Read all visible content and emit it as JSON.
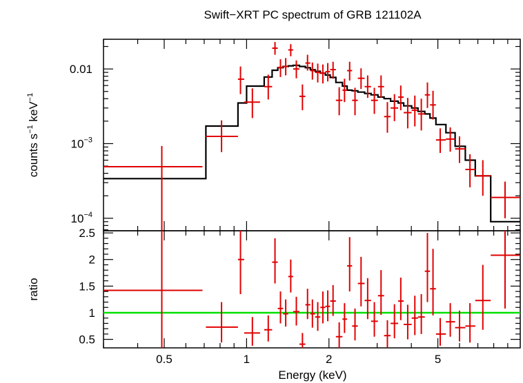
{
  "chart_data": {
    "type": "scatter",
    "title": "Swift−XRT PC spectrum of GRB 121102A",
    "xlabel": "Energy (keV)",
    "xscale": "log",
    "xlim": [
      0.3,
      10
    ],
    "xtick_labels": [
      {
        "value": 0.5,
        "label": "0.5"
      },
      {
        "value": 1,
        "label": "1"
      },
      {
        "value": 2,
        "label": "2"
      },
      {
        "value": 5,
        "label": "5"
      }
    ],
    "top_panel": {
      "ylabel": {
        "base": "counts s",
        "exp1": "−1",
        "mid": " keV",
        "exp2": "−1"
      },
      "yscale": "log",
      "ylim": [
        6.8e-05,
        0.025
      ],
      "ytick_labels": [
        {
          "value": 0.01,
          "base": "0.01",
          "exp": ""
        },
        {
          "value": 0.001,
          "base": "10",
          "exp": "−3"
        },
        {
          "value": 0.0001,
          "base": "10",
          "exp": "−4"
        }
      ],
      "series": [
        {
          "name": "data",
          "color": "#e00000",
          "points": [
            {
              "x": 0.49,
              "xlo": 0.3,
              "xhi": 0.69,
              "y": 0.00049,
              "ylo": 5e-05,
              "yhi": 0.00093
            },
            {
              "x": 0.81,
              "xlo": 0.71,
              "xhi": 0.93,
              "y": 0.00125,
              "ylo": 0.00077,
              "yhi": 0.00205
            },
            {
              "x": 0.95,
              "xlo": 0.93,
              "xhi": 0.98,
              "y": 0.0073,
              "ylo": 0.0046,
              "yhi": 0.0108
            },
            {
              "x": 1.05,
              "xlo": 0.98,
              "xhi": 1.12,
              "y": 0.0036,
              "ylo": 0.0022,
              "yhi": 0.0055
            },
            {
              "x": 1.2,
              "xlo": 1.16,
              "xhi": 1.24,
              "y": 0.0058,
              "ylo": 0.0039,
              "yhi": 0.0084
            },
            {
              "x": 1.27,
              "xlo": 1.24,
              "xhi": 1.3,
              "y": 0.019,
              "ylo": 0.0155,
              "yhi": 0.023
            },
            {
              "x": 1.33,
              "xlo": 1.3,
              "xhi": 1.36,
              "y": 0.0105,
              "ylo": 0.0078,
              "yhi": 0.0135
            },
            {
              "x": 1.39,
              "xlo": 1.36,
              "xhi": 1.42,
              "y": 0.0108,
              "ylo": 0.0082,
              "yhi": 0.014
            },
            {
              "x": 1.45,
              "xlo": 1.42,
              "xhi": 1.48,
              "y": 0.018,
              "ylo": 0.0148,
              "yhi": 0.0215
            },
            {
              "x": 1.52,
              "xlo": 1.48,
              "xhi": 1.56,
              "y": 0.01,
              "ylo": 0.0075,
              "yhi": 0.013
            },
            {
              "x": 1.6,
              "xlo": 1.56,
              "xhi": 1.64,
              "y": 0.0043,
              "ylo": 0.0028,
              "yhi": 0.0062
            },
            {
              "x": 1.67,
              "xlo": 1.64,
              "xhi": 1.71,
              "y": 0.012,
              "ylo": 0.0095,
              "yhi": 0.0155
            },
            {
              "x": 1.74,
              "xlo": 1.71,
              "xhi": 1.78,
              "y": 0.0095,
              "ylo": 0.0072,
              "yhi": 0.0122
            },
            {
              "x": 1.82,
              "xlo": 1.78,
              "xhi": 1.86,
              "y": 0.009,
              "ylo": 0.0066,
              "yhi": 0.0118
            },
            {
              "x": 1.9,
              "xlo": 1.86,
              "xhi": 1.94,
              "y": 0.0088,
              "ylo": 0.0064,
              "yhi": 0.0115
            },
            {
              "x": 1.98,
              "xlo": 1.94,
              "xhi": 2.02,
              "y": 0.0092,
              "ylo": 0.0068,
              "yhi": 0.012
            },
            {
              "x": 2.07,
              "xlo": 2.02,
              "xhi": 2.12,
              "y": 0.0098,
              "ylo": 0.0074,
              "yhi": 0.0125
            },
            {
              "x": 2.18,
              "xlo": 2.12,
              "xhi": 2.24,
              "y": 0.0038,
              "ylo": 0.0024,
              "yhi": 0.0057
            },
            {
              "x": 2.28,
              "xlo": 2.24,
              "xhi": 2.33,
              "y": 0.0052,
              "ylo": 0.0036,
              "yhi": 0.0074
            },
            {
              "x": 2.38,
              "xlo": 2.33,
              "xhi": 2.43,
              "y": 0.0095,
              "ylo": 0.007,
              "yhi": 0.0125
            },
            {
              "x": 2.49,
              "xlo": 2.43,
              "xhi": 2.55,
              "y": 0.0038,
              "ylo": 0.0024,
              "yhi": 0.0056
            },
            {
              "x": 2.62,
              "xlo": 2.55,
              "xhi": 2.7,
              "y": 0.0075,
              "ylo": 0.0054,
              "yhi": 0.0102
            },
            {
              "x": 2.77,
              "xlo": 2.7,
              "xhi": 2.85,
              "y": 0.0058,
              "ylo": 0.0041,
              "yhi": 0.0082
            },
            {
              "x": 2.93,
              "xlo": 2.85,
              "xhi": 3.02,
              "y": 0.0038,
              "ylo": 0.0025,
              "yhi": 0.0056
            },
            {
              "x": 3.1,
              "xlo": 3.02,
              "xhi": 3.18,
              "y": 0.0058,
              "ylo": 0.0041,
              "yhi": 0.0082
            },
            {
              "x": 3.27,
              "xlo": 3.18,
              "xhi": 3.36,
              "y": 0.0023,
              "ylo": 0.0014,
              "yhi": 0.0036
            },
            {
              "x": 3.47,
              "xlo": 3.36,
              "xhi": 3.58,
              "y": 0.003,
              "ylo": 0.002,
              "yhi": 0.0046
            },
            {
              "x": 3.66,
              "xlo": 3.58,
              "xhi": 3.75,
              "y": 0.0042,
              "ylo": 0.0028,
              "yhi": 0.006
            },
            {
              "x": 3.88,
              "xlo": 3.75,
              "xhi": 4.01,
              "y": 0.0026,
              "ylo": 0.0016,
              "yhi": 0.0041
            },
            {
              "x": 4.12,
              "xlo": 4.01,
              "xhi": 4.23,
              "y": 0.0028,
              "ylo": 0.0017,
              "yhi": 0.0044
            },
            {
              "x": 4.35,
              "xlo": 4.23,
              "xhi": 4.48,
              "y": 0.0025,
              "ylo": 0.0015,
              "yhi": 0.004
            },
            {
              "x": 4.58,
              "xlo": 4.48,
              "xhi": 4.68,
              "y": 0.0045,
              "ylo": 0.003,
              "yhi": 0.0066
            },
            {
              "x": 4.8,
              "xlo": 4.68,
              "xhi": 4.92,
              "y": 0.0033,
              "ylo": 0.0021,
              "yhi": 0.0051
            },
            {
              "x": 5.1,
              "xlo": 4.92,
              "xhi": 5.35,
              "y": 0.00112,
              "ylo": 0.00075,
              "yhi": 0.0016
            },
            {
              "x": 5.55,
              "xlo": 5.35,
              "xhi": 5.78,
              "y": 0.00115,
              "ylo": 0.00078,
              "yhi": 0.00165
            },
            {
              "x": 6.0,
              "xlo": 5.78,
              "xhi": 6.3,
              "y": 0.00085,
              "ylo": 0.00055,
              "yhi": 0.00125
            },
            {
              "x": 6.55,
              "xlo": 6.3,
              "xhi": 6.85,
              "y": 0.00045,
              "ylo": 0.00026,
              "yhi": 0.00072
            },
            {
              "x": 7.3,
              "xlo": 6.85,
              "xhi": 7.8,
              "y": 0.00037,
              "ylo": 0.0002,
              "yhi": 0.0006
            },
            {
              "x": 8.8,
              "xlo": 7.8,
              "xhi": 10.0,
              "y": 0.00019,
              "ylo": 0.0001,
              "yhi": 0.00031
            }
          ]
        },
        {
          "name": "model",
          "color": "#000000",
          "steps": [
            {
              "x0": 0.3,
              "x1": 0.71,
              "y": 0.00034
            },
            {
              "x0": 0.71,
              "x1": 0.93,
              "y": 0.00172
            },
            {
              "x0": 0.93,
              "x1": 1.0,
              "y": 0.0035
            },
            {
              "x0": 1.0,
              "x1": 1.16,
              "y": 0.0059
            },
            {
              "x0": 1.16,
              "x1": 1.24,
              "y": 0.0078
            },
            {
              "x0": 1.24,
              "x1": 1.3,
              "y": 0.0096
            },
            {
              "x0": 1.3,
              "x1": 1.36,
              "y": 0.0104
            },
            {
              "x0": 1.36,
              "x1": 1.42,
              "y": 0.0108
            },
            {
              "x0": 1.42,
              "x1": 1.48,
              "y": 0.011
            },
            {
              "x0": 1.48,
              "x1": 1.56,
              "y": 0.0112
            },
            {
              "x0": 1.56,
              "x1": 1.64,
              "y": 0.0108
            },
            {
              "x0": 1.64,
              "x1": 1.71,
              "y": 0.0104
            },
            {
              "x0": 1.71,
              "x1": 1.78,
              "y": 0.0098
            },
            {
              "x0": 1.78,
              "x1": 1.86,
              "y": 0.0093
            },
            {
              "x0": 1.86,
              "x1": 1.94,
              "y": 0.0088
            },
            {
              "x0": 1.94,
              "x1": 2.02,
              "y": 0.0083
            },
            {
              "x0": 2.02,
              "x1": 2.12,
              "y": 0.0077
            },
            {
              "x0": 2.12,
              "x1": 2.24,
              "y": 0.0066
            },
            {
              "x0": 2.24,
              "x1": 2.33,
              "y": 0.0059
            },
            {
              "x0": 2.33,
              "x1": 2.43,
              "y": 0.0052
            },
            {
              "x0": 2.43,
              "x1": 2.55,
              "y": 0.0051
            },
            {
              "x0": 2.55,
              "x1": 2.7,
              "y": 0.0049
            },
            {
              "x0": 2.7,
              "x1": 2.85,
              "y": 0.0047
            },
            {
              "x0": 2.85,
              "x1": 3.02,
              "y": 0.0045
            },
            {
              "x0": 3.02,
              "x1": 3.18,
              "y": 0.0042
            },
            {
              "x0": 3.18,
              "x1": 3.36,
              "y": 0.004
            },
            {
              "x0": 3.36,
              "x1": 3.58,
              "y": 0.0037
            },
            {
              "x0": 3.58,
              "x1": 3.75,
              "y": 0.0035
            },
            {
              "x0": 3.75,
              "x1": 4.01,
              "y": 0.0032
            },
            {
              "x0": 4.01,
              "x1": 4.23,
              "y": 0.003
            },
            {
              "x0": 4.23,
              "x1": 4.48,
              "y": 0.0027
            },
            {
              "x0": 4.48,
              "x1": 4.68,
              "y": 0.0025
            },
            {
              "x0": 4.68,
              "x1": 4.92,
              "y": 0.0022
            },
            {
              "x0": 4.92,
              "x1": 5.35,
              "y": 0.0018
            },
            {
              "x0": 5.35,
              "x1": 5.78,
              "y": 0.0014
            },
            {
              "x0": 5.78,
              "x1": 6.3,
              "y": 0.00092
            },
            {
              "x0": 6.3,
              "x1": 6.85,
              "y": 0.0006
            },
            {
              "x0": 6.85,
              "x1": 7.8,
              "y": 0.00037
            },
            {
              "x0": 7.8,
              "x1": 10.0,
              "y": 9e-05
            }
          ]
        }
      ]
    },
    "bottom_panel": {
      "ylabel": "ratio",
      "yscale": "linear",
      "ylim": [
        0.34,
        2.54
      ],
      "ytick_labels": [
        {
          "value": 0.5,
          "label": "0.5"
        },
        {
          "value": 1,
          "label": "1"
        },
        {
          "value": 1.5,
          "label": "1.5"
        },
        {
          "value": 2,
          "label": "2"
        },
        {
          "value": 2.5,
          "label": "2.5"
        }
      ],
      "reference_line": {
        "y": 1,
        "color": "#22e000"
      },
      "points": [
        {
          "x": 0.49,
          "xlo": 0.3,
          "xhi": 0.69,
          "y": 1.42,
          "ylo": 0.34,
          "yhi": 2.54
        },
        {
          "x": 0.81,
          "xlo": 0.71,
          "xhi": 0.93,
          "y": 0.73,
          "ylo": 0.44,
          "yhi": 1.2
        },
        {
          "x": 0.95,
          "xlo": 0.93,
          "xhi": 0.98,
          "y": 2.0,
          "ylo": 1.35,
          "yhi": 2.54
        },
        {
          "x": 1.05,
          "xlo": 0.98,
          "xhi": 1.12,
          "y": 0.62,
          "ylo": 0.38,
          "yhi": 0.92
        },
        {
          "x": 1.2,
          "xlo": 1.16,
          "xhi": 1.24,
          "y": 0.68,
          "ylo": 0.46,
          "yhi": 0.95
        },
        {
          "x": 1.27,
          "xlo": 1.24,
          "xhi": 1.3,
          "y": 1.95,
          "ylo": 1.55,
          "yhi": 2.4
        },
        {
          "x": 1.33,
          "xlo": 1.3,
          "xhi": 1.36,
          "y": 1.08,
          "ylo": 0.8,
          "yhi": 1.4
        },
        {
          "x": 1.39,
          "xlo": 1.36,
          "xhi": 1.42,
          "y": 0.98,
          "ylo": 0.74,
          "yhi": 1.25
        },
        {
          "x": 1.45,
          "xlo": 1.42,
          "xhi": 1.48,
          "y": 1.68,
          "ylo": 1.38,
          "yhi": 2.0
        },
        {
          "x": 1.52,
          "xlo": 1.48,
          "xhi": 1.56,
          "y": 1.02,
          "ylo": 0.76,
          "yhi": 1.3
        },
        {
          "x": 1.6,
          "xlo": 1.56,
          "xhi": 1.64,
          "y": 0.41,
          "ylo": 0.34,
          "yhi": 0.62
        },
        {
          "x": 1.67,
          "xlo": 1.64,
          "xhi": 1.71,
          "y": 1.15,
          "ylo": 0.88,
          "yhi": 1.45
        },
        {
          "x": 1.74,
          "xlo": 1.71,
          "xhi": 1.78,
          "y": 0.98,
          "ylo": 0.72,
          "yhi": 1.25
        },
        {
          "x": 1.82,
          "xlo": 1.78,
          "xhi": 1.86,
          "y": 0.92,
          "ylo": 0.66,
          "yhi": 1.2
        },
        {
          "x": 1.9,
          "xlo": 1.86,
          "xhi": 1.94,
          "y": 1.1,
          "ylo": 0.8,
          "yhi": 1.4
        },
        {
          "x": 1.98,
          "xlo": 1.94,
          "xhi": 2.02,
          "y": 1.12,
          "ylo": 0.84,
          "yhi": 1.42
        },
        {
          "x": 2.07,
          "xlo": 2.02,
          "xhi": 2.12,
          "y": 1.22,
          "ylo": 0.94,
          "yhi": 1.52
        },
        {
          "x": 2.18,
          "xlo": 2.12,
          "xhi": 2.24,
          "y": 0.55,
          "ylo": 0.34,
          "yhi": 0.82
        },
        {
          "x": 2.28,
          "xlo": 2.24,
          "xhi": 2.33,
          "y": 0.88,
          "ylo": 0.62,
          "yhi": 1.18
        },
        {
          "x": 2.38,
          "xlo": 2.33,
          "xhi": 2.43,
          "y": 1.88,
          "ylo": 1.4,
          "yhi": 2.42
        },
        {
          "x": 2.49,
          "xlo": 2.43,
          "xhi": 2.55,
          "y": 0.75,
          "ylo": 0.48,
          "yhi": 1.08
        },
        {
          "x": 2.62,
          "xlo": 2.55,
          "xhi": 2.7,
          "y": 1.55,
          "ylo": 1.12,
          "yhi": 2.05
        },
        {
          "x": 2.77,
          "xlo": 2.7,
          "xhi": 2.85,
          "y": 1.23,
          "ylo": 0.88,
          "yhi": 1.65
        },
        {
          "x": 2.93,
          "xlo": 2.85,
          "xhi": 3.02,
          "y": 0.84,
          "ylo": 0.55,
          "yhi": 1.2
        },
        {
          "x": 3.1,
          "xlo": 3.02,
          "xhi": 3.18,
          "y": 1.32,
          "ylo": 0.96,
          "yhi": 1.8
        },
        {
          "x": 3.27,
          "xlo": 3.18,
          "xhi": 3.36,
          "y": 0.57,
          "ylo": 0.35,
          "yhi": 0.86
        },
        {
          "x": 3.47,
          "xlo": 3.36,
          "xhi": 3.58,
          "y": 0.8,
          "ylo": 0.52,
          "yhi": 1.16
        },
        {
          "x": 3.66,
          "xlo": 3.58,
          "xhi": 3.75,
          "y": 1.22,
          "ylo": 0.86,
          "yhi": 1.66
        },
        {
          "x": 3.88,
          "xlo": 3.75,
          "xhi": 4.01,
          "y": 0.78,
          "ylo": 0.5,
          "yhi": 1.15
        },
        {
          "x": 4.12,
          "xlo": 4.01,
          "xhi": 4.23,
          "y": 0.9,
          "ylo": 0.58,
          "yhi": 1.32
        },
        {
          "x": 4.35,
          "xlo": 4.23,
          "xhi": 4.48,
          "y": 0.92,
          "ylo": 0.6,
          "yhi": 1.35
        },
        {
          "x": 4.58,
          "xlo": 4.48,
          "xhi": 4.68,
          "y": 1.78,
          "ylo": 1.2,
          "yhi": 2.5
        },
        {
          "x": 4.8,
          "xlo": 4.68,
          "xhi": 4.92,
          "y": 1.45,
          "ylo": 0.95,
          "yhi": 2.2
        },
        {
          "x": 5.1,
          "xlo": 4.92,
          "xhi": 5.35,
          "y": 0.6,
          "ylo": 0.38,
          "yhi": 0.9
        },
        {
          "x": 5.55,
          "xlo": 5.35,
          "xhi": 5.78,
          "y": 0.83,
          "ylo": 0.55,
          "yhi": 1.18
        },
        {
          "x": 6.0,
          "xlo": 5.78,
          "xhi": 6.3,
          "y": 0.72,
          "ylo": 0.46,
          "yhi": 1.04
        },
        {
          "x": 6.55,
          "xlo": 6.3,
          "xhi": 6.85,
          "y": 0.75,
          "ylo": 0.44,
          "yhi": 1.18
        },
        {
          "x": 7.3,
          "xlo": 6.85,
          "xhi": 7.8,
          "y": 1.23,
          "ylo": 0.68,
          "yhi": 1.9
        },
        {
          "x": 8.8,
          "xlo": 7.8,
          "xhi": 10.0,
          "y": 2.08,
          "ylo": 1.08,
          "yhi": 2.54
        }
      ]
    }
  }
}
